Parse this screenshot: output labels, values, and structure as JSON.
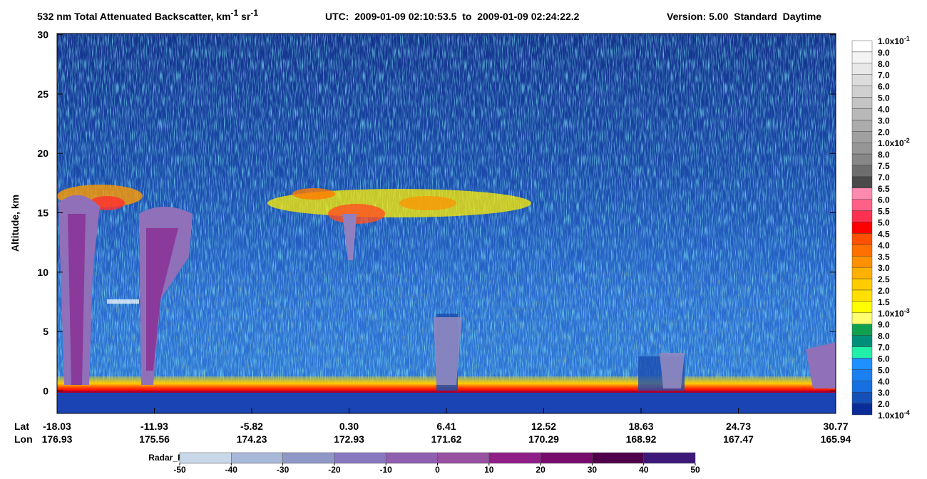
{
  "chart_data": {
    "type": "heatmap",
    "title": {
      "text": "532 nm Total Attenuated Backscatter, km",
      "sup1": "-1",
      "mid": " sr",
      "sup2": "-1"
    },
    "utc": "UTC:  2009-01-09 02:10:53.5  to  2009-01-09 02:24:22.2",
    "version": "Version: 5.00  Standard  Daytime",
    "ylabel": "Altitude, km",
    "ylim": [
      -1.9,
      30.1
    ],
    "yticks": [
      0,
      5,
      10,
      15,
      20,
      25,
      30
    ],
    "x_row_labels": [
      "Lat",
      "Lon"
    ],
    "lat": [
      "-18.03",
      "-11.93",
      "-5.82",
      "0.30",
      "6.41",
      "12.52",
      "18.63",
      "24.73",
      "30.77"
    ],
    "lon": [
      "176.93",
      "175.56",
      "174.23",
      "172.93",
      "171.62",
      "170.29",
      "168.92",
      "167.47",
      "165.94"
    ],
    "colorbar": {
      "labels": [
        {
          "text": "1.0x10",
          "sup": "-1"
        },
        "9.0",
        "8.0",
        "7.0",
        "6.0",
        "5.0",
        "4.0",
        "3.0",
        "2.0",
        {
          "text": "1.0x10",
          "sup": "-2"
        },
        "8.0",
        "7.5",
        "7.0",
        "6.5",
        "6.0",
        "5.5",
        "5.0",
        "4.5",
        "4.0",
        "3.5",
        "3.0",
        "2.5",
        "2.0",
        "1.5",
        {
          "text": "1.0x10",
          "sup": "-3"
        },
        "9.0",
        "8.0",
        "7.0",
        "6.0",
        "5.0",
        "4.0",
        "3.0",
        "2.0",
        {
          "text": "1.0x10",
          "sup": "-4"
        }
      ],
      "colors": [
        "#ffffff",
        "#f4f4f4",
        "#e8e8e8",
        "#dcdcdc",
        "#d0d0d0",
        "#c4c4c4",
        "#b8b8b8",
        "#acacac",
        "#a0a0a0",
        "#969696",
        "#878787",
        "#6e6e6e",
        "#4a4a4a",
        "#ff8ab0",
        "#ff6088",
        "#ff3050",
        "#ff0000",
        "#ff5000",
        "#ff7000",
        "#ff9000",
        "#ffb000",
        "#ffcc00",
        "#ffe000",
        "#ffff00",
        "#ffff70",
        "#10a050",
        "#00907a",
        "#20f0a8",
        "#1e90ff",
        "#1a80f0",
        "#1670e0",
        "#1450b8",
        "#0a2c98"
      ]
    },
    "radar_colorbar": {
      "label": "Radar_Reflectivity",
      "ticks": [
        -50,
        -40,
        -30,
        -20,
        -10,
        0,
        10,
        20,
        30,
        40,
        50
      ],
      "colors": [
        "#c8d8e8",
        "#a8b8d8",
        "#9098c8",
        "#8878c0",
        "#9060b0",
        "#9850a0",
        "#901e88",
        "#780c6c",
        "#50004a",
        "#3c1878"
      ]
    }
  }
}
